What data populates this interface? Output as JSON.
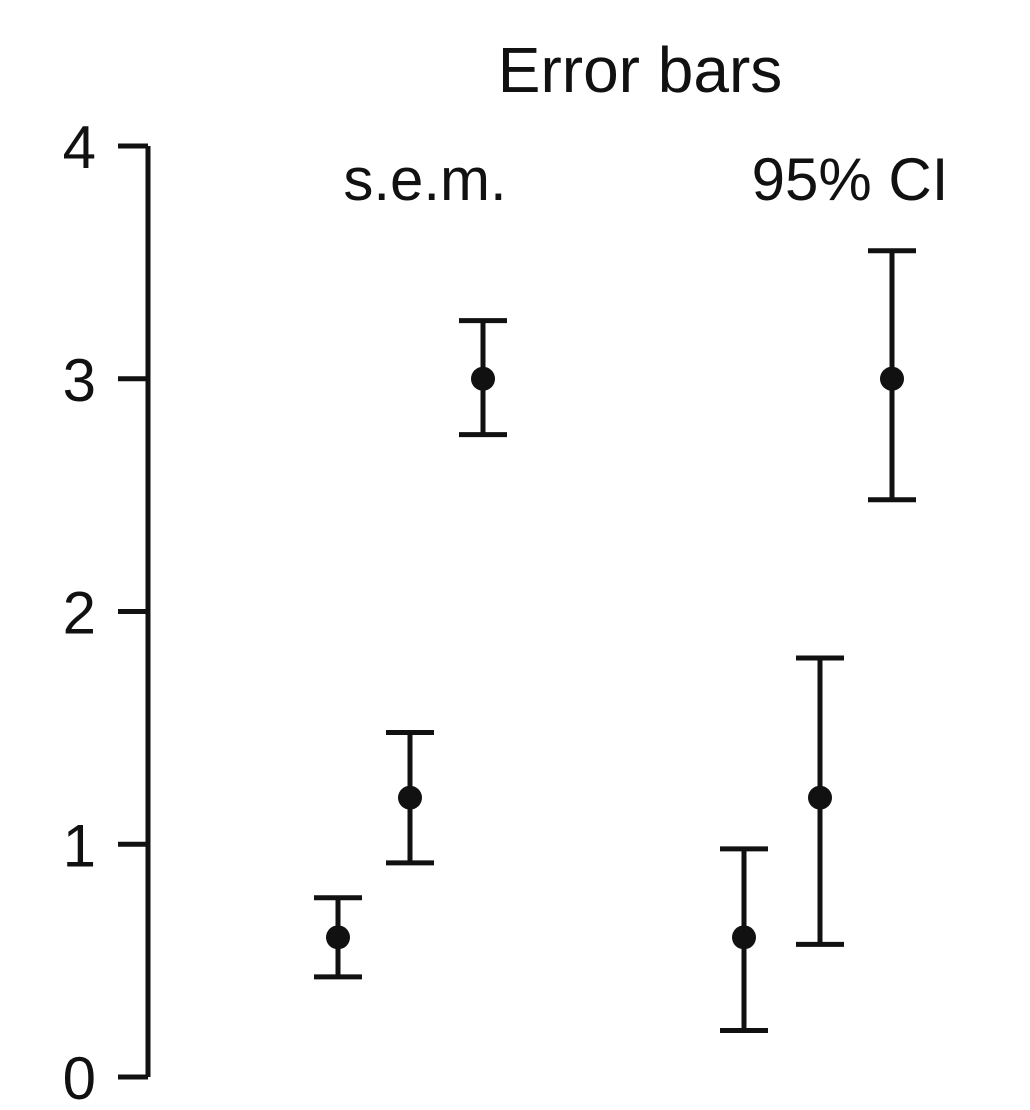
{
  "chart_data": {
    "type": "scatter",
    "title": "Error bars",
    "xlabel": "",
    "ylabel": "",
    "ylim": [
      0,
      4
    ],
    "yticks": [
      "0",
      "1",
      "2",
      "3",
      "4"
    ],
    "grid": false,
    "legend": "none",
    "error_bar_types": [
      "s.e.m.",
      "95% CI"
    ],
    "groups": [
      {
        "label": "s.e.m.",
        "points": [
          {
            "mean": 0.6,
            "lower": 0.43,
            "upper": 0.77
          },
          {
            "mean": 1.2,
            "lower": 0.92,
            "upper": 1.48
          },
          {
            "mean": 3.0,
            "lower": 2.76,
            "upper": 3.25
          }
        ]
      },
      {
        "label": "95% CI",
        "points": [
          {
            "mean": 0.6,
            "lower": 0.2,
            "upper": 0.98
          },
          {
            "mean": 1.2,
            "lower": 0.57,
            "upper": 1.8
          },
          {
            "mean": 3.0,
            "lower": 2.48,
            "upper": 3.55
          }
        ]
      }
    ],
    "colors": {
      "marks": "#111111",
      "background": "#ffffff"
    }
  }
}
